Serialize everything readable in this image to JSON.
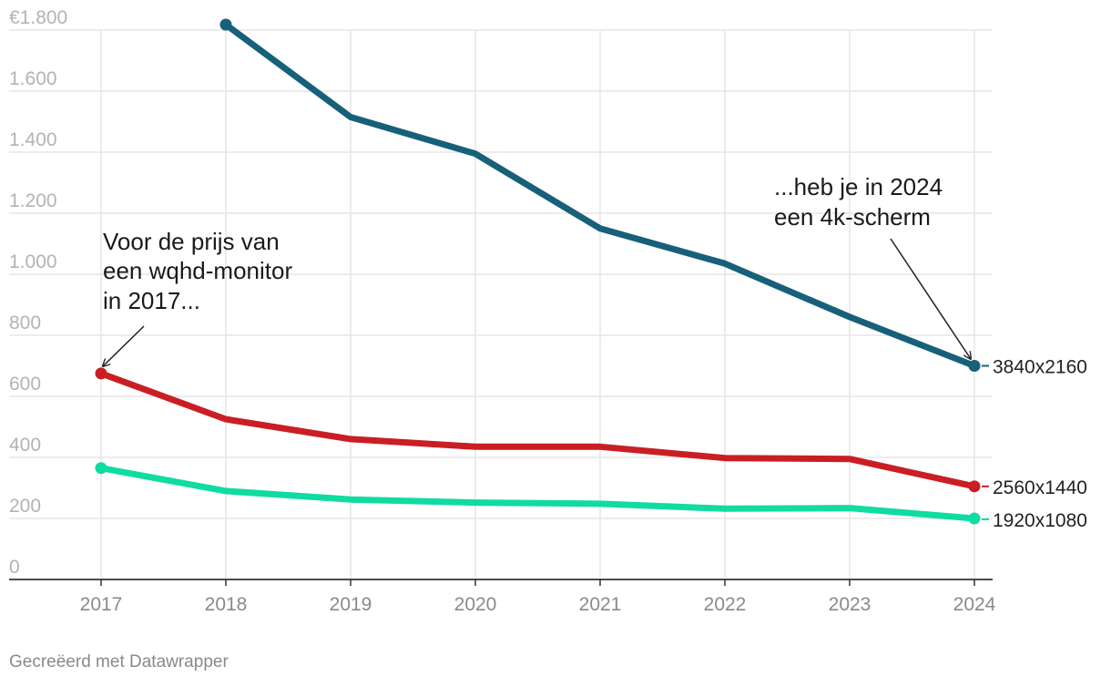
{
  "chart_data": {
    "type": "line",
    "x": [
      2017,
      2018,
      2019,
      2020,
      2021,
      2022,
      2023,
      2024
    ],
    "x_tick_labels": [
      "2017",
      "2018",
      "2019",
      "2020",
      "2021",
      "2022",
      "2023",
      "2024"
    ],
    "y_tick_labels": [
      "0",
      "200",
      "400",
      "600",
      "800",
      "1.000",
      "1.200",
      "1.400",
      "1.600",
      "€1.800"
    ],
    "y_ticks": [
      0,
      200,
      400,
      600,
      800,
      1000,
      1200,
      1400,
      1600,
      1800
    ],
    "ylim": [
      0,
      1800
    ],
    "grid": true,
    "series": [
      {
        "name": "3840x2160",
        "color": "#17607a",
        "values": [
          null,
          1818,
          1515,
          1395,
          1150,
          1035,
          860,
          700
        ]
      },
      {
        "name": "2560x1440",
        "color": "#c91f24",
        "values": [
          675,
          525,
          460,
          435,
          435,
          398,
          395,
          305
        ]
      },
      {
        "name": "1920x1080",
        "color": "#10dba3",
        "values": [
          365,
          290,
          262,
          252,
          248,
          232,
          234,
          200
        ]
      }
    ],
    "annotations": [
      {
        "lines": [
          "Voor de prijs van",
          "een wqhd-monitor",
          "in 2017..."
        ]
      },
      {
        "lines": [
          "...heb je in 2024",
          "een 4k-scherm"
        ]
      }
    ]
  },
  "credit": "Gecreëerd met Datawrapper"
}
